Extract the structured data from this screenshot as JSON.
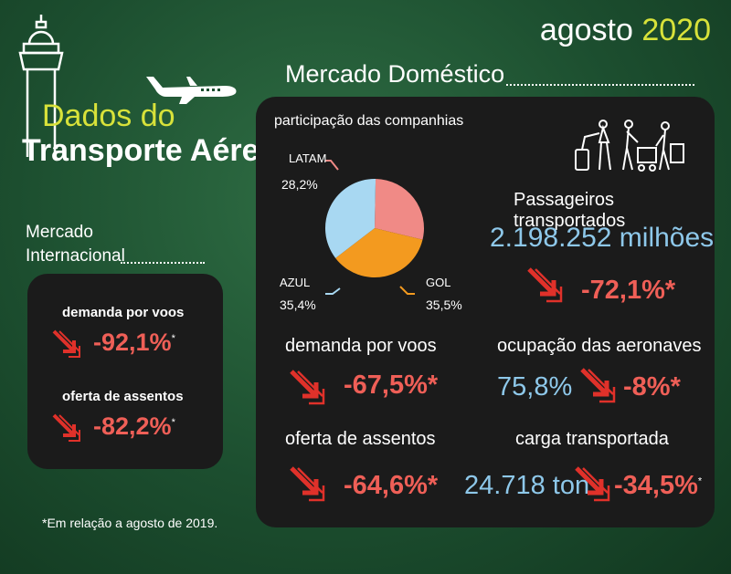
{
  "header": {
    "month": "agosto",
    "year": "2020"
  },
  "title": {
    "line1": "Dados do",
    "line2": "Transporte Aéreo"
  },
  "international": {
    "heading_line1": "Mercado",
    "heading_line2": "Internacional",
    "demand_label": "demanda por voos",
    "demand_value": "-92,1%",
    "seats_label": "oferta de assentos",
    "seats_value": "-82,2%",
    "asterisk": "*"
  },
  "footnote": "*Em relação a agosto de 2019.",
  "domestic": {
    "heading": "Mercado Doméstico",
    "share_title": "participação das companhias",
    "passengers_label": "Passageiros transportados",
    "passengers_value": "2.198.252 milhões",
    "passengers_change": "-72,1%*",
    "demand_label": "demanda por voos",
    "demand_change": "-67,5%*",
    "occupancy_label": "ocupação das aeronaves",
    "occupancy_value": "75,8%",
    "occupancy_change": "-8%*",
    "seats_label": "oferta de assentos",
    "seats_change": "-64,6%*",
    "cargo_label": "carga transportada",
    "cargo_value": "24.718 ton",
    "cargo_change": "-34,5%",
    "asterisk": "*"
  },
  "chart_data": {
    "type": "pie",
    "title": "participação das companhias",
    "slices": [
      {
        "label": "LATAM",
        "value": 28.2,
        "value_text": "28,2%",
        "color": "#f08a86"
      },
      {
        "label": "GOL",
        "value": 35.5,
        "value_text": "35,5%",
        "color": "#f39a1f"
      },
      {
        "label": "AZUL",
        "value": 35.4,
        "value_text": "35,4%",
        "color": "#a8d8f2"
      }
    ]
  },
  "colors": {
    "accent_lime": "#d8e23a",
    "accent_red": "#ef5f57",
    "accent_blue": "#8ec8ea",
    "panel": "#1b1b1b"
  }
}
